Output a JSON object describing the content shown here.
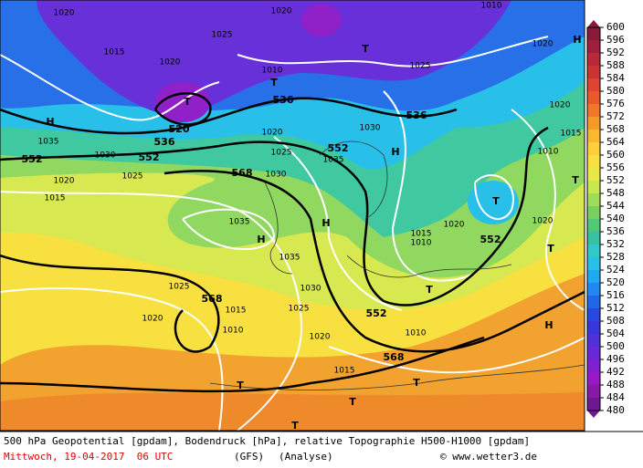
{
  "map": {
    "labels": [
      "1020",
      "1020",
      "1010",
      "1025",
      "1015",
      "1020",
      "1010",
      "T",
      "536",
      "1025",
      "1020",
      "H",
      "T",
      "T",
      "520",
      "536",
      "H",
      "1035",
      "552",
      "1030",
      "552",
      "1025",
      "1020",
      "1015",
      "568",
      "1030",
      "1020",
      "1025",
      "552",
      "1035",
      "1030",
      "536",
      "H",
      "1020",
      "1015",
      "1010",
      "T",
      "T",
      "1020",
      "552",
      "1020",
      "1015",
      "1010",
      "H",
      "H",
      "1035",
      "1035",
      "1030",
      "568",
      "1025",
      "1015",
      "1010",
      "1020",
      "1025",
      "552",
      "T",
      "1020",
      "1010",
      "568",
      "T",
      "H",
      "1015",
      "T",
      "T",
      "T",
      "T"
    ]
  },
  "colorbar": {
    "ticks": [
      600,
      596,
      592,
      588,
      584,
      580,
      576,
      572,
      568,
      564,
      560,
      556,
      552,
      548,
      544,
      540,
      536,
      532,
      528,
      524,
      520,
      516,
      512,
      508,
      504,
      500,
      496,
      492,
      488,
      484,
      480
    ],
    "colors": [
      "#8b1a3a",
      "#a0203c",
      "#b82a3a",
      "#cc3333",
      "#dd4433",
      "#e85a2a",
      "#f07828",
      "#f59a2a",
      "#f9b830",
      "#fbd03a",
      "#f8e040",
      "#e8e848",
      "#c8e850",
      "#a0dc58",
      "#78d060",
      "#50c878",
      "#38c0a0",
      "#30c8c8",
      "#28c0e8",
      "#20a8f0",
      "#2088f0",
      "#2068e8",
      "#2848e0",
      "#3838d8",
      "#5030d8",
      "#6828d8",
      "#8020d0",
      "#9818c8",
      "#8818a8",
      "#701890"
    ]
  },
  "footer": {
    "line1": "500 hPa Geopotential [gpdam], Bodendruck [hPa], relative Topographie H500-H1000 [gpdam]",
    "date": "Mittwoch, 19-04-2017  06 UTC",
    "model": "(GFS)",
    "run": "(Analyse)",
    "credit": "© www.wetter3.de"
  }
}
